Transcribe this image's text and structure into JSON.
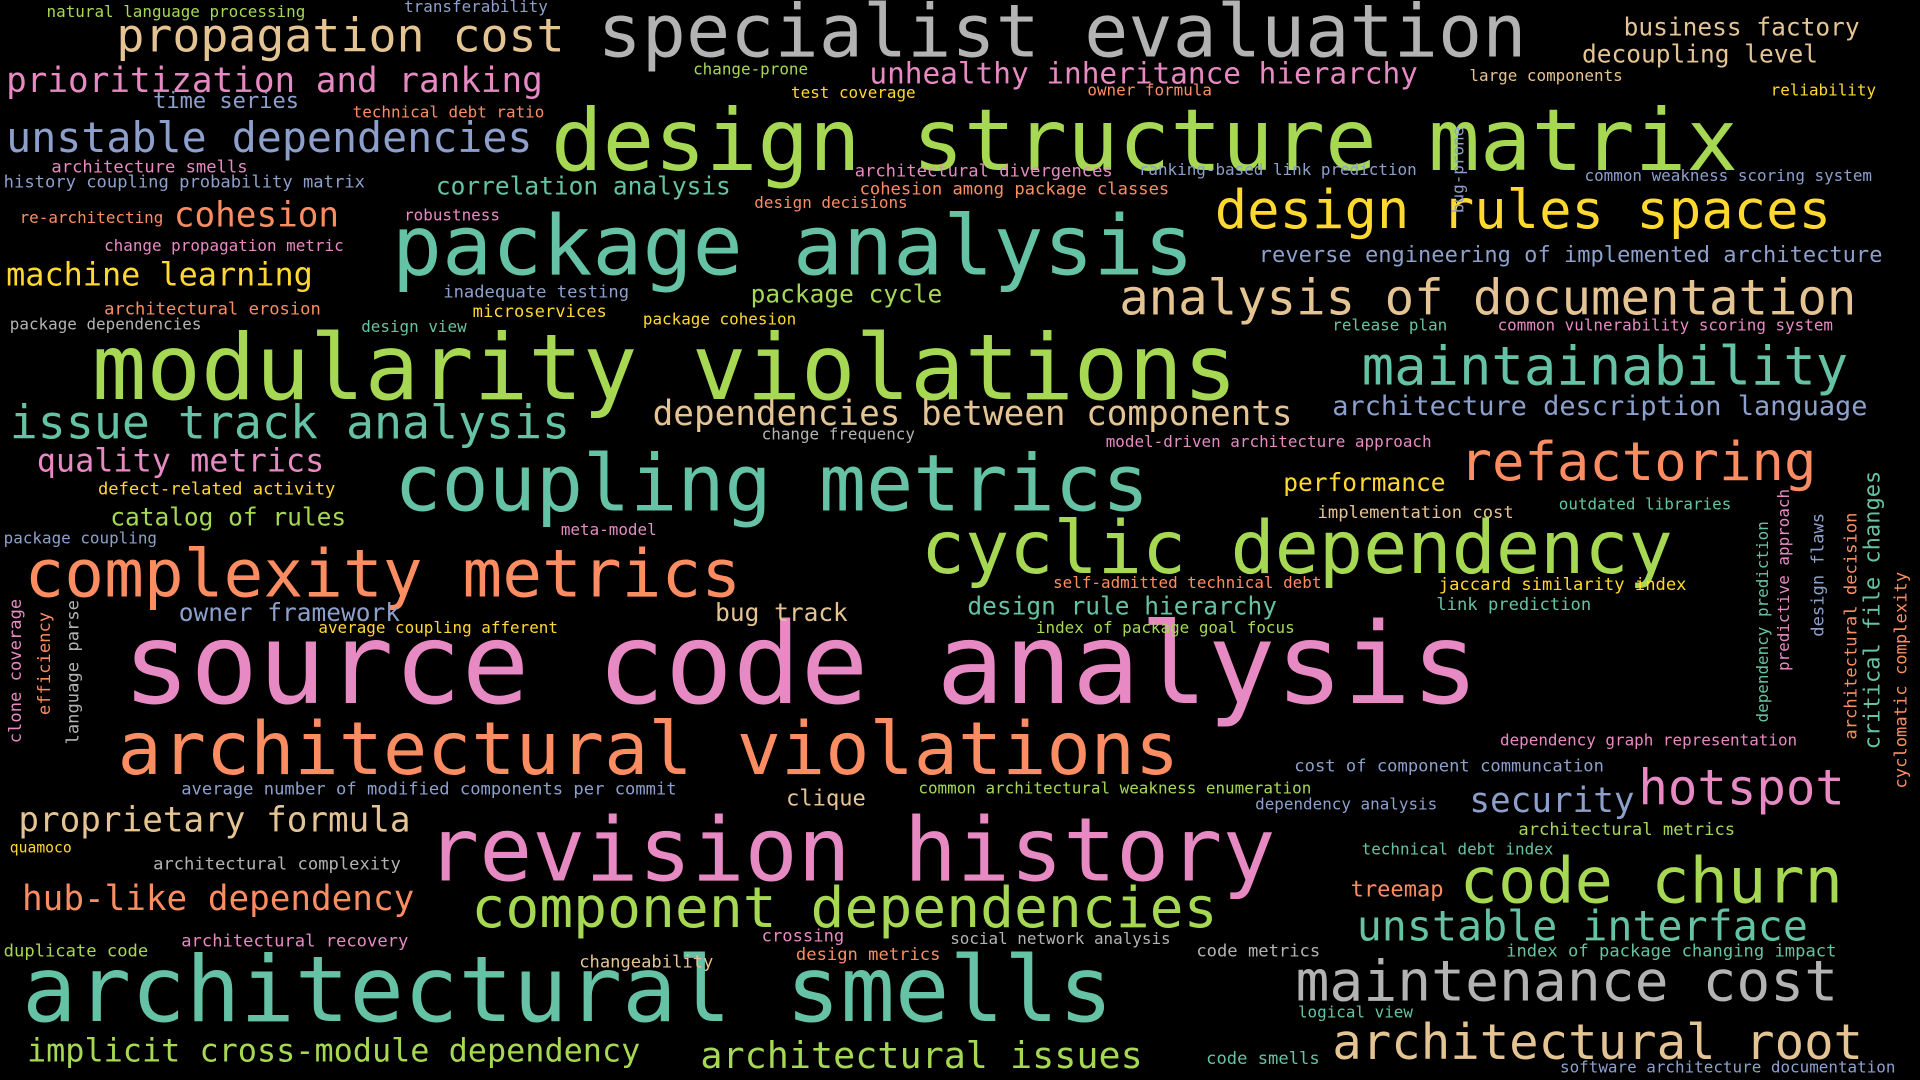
{
  "palette": {
    "background": "#000000",
    "pink": "#e78ac3",
    "green": "#a6d854",
    "teal": "#66c2a5",
    "orange": "#fc8d62",
    "blue": "#8da0cb",
    "yellow": "#ffd92f",
    "tan": "#e5c494",
    "gray": "#b3b3b3"
  },
  "words": {
    "source_code_analysis": "source code analysis",
    "design_structure_matrix": "design structure matrix",
    "modularity_violations": "modularity violations",
    "package_analysis": "package analysis",
    "specialist_evaluation": "specialist evaluation",
    "coupling_metrics": "coupling metrics",
    "cyclic_dependency": "cyclic dependency",
    "architectural_smells": "architectural smells",
    "revision_history": "revision history",
    "architectural_violations": "architectural violations",
    "complexity_metrics": "complexity metrics",
    "design_rules_spaces": "design rules spaces",
    "analysis_of_documentation": "analysis of documentation",
    "maintainability": "maintainability",
    "refactoring": "refactoring",
    "code_churn": "code churn",
    "maintenance_cost": "maintenance cost",
    "component_dependencies": "component dependencies",
    "architectural_root": "architectural root",
    "hotspot": "hotspot",
    "issue_track_analysis": "issue track analysis",
    "propagation_cost": "propagation cost",
    "unstable_dependencies": "unstable dependencies",
    "prioritization_and_ranking": "prioritization and ranking",
    "unstable_interface": "unstable interface",
    "dependencies_between_components": "dependencies between components",
    "implicit_cross_module_dependency": "implicit cross-module dependency",
    "architectural_issues": "architectural issues",
    "proprietary_formula": "proprietary formula",
    "hub_like_dependency": "hub-like dependency",
    "unhealthy_inheritance_hierarchy": "unhealthy inheritance hierarchy",
    "cohesion": "cohesion",
    "machine_learning": "machine learning",
    "quality_metrics": "quality metrics",
    "security": "security",
    "architecture_description_language": "architecture description language",
    "business_factory": "business factory",
    "decoupling_level": "decoupling level",
    "catalog_of_rules": "catalog of rules",
    "performance": "performance",
    "correlation_analysis": "correlation analysis",
    "package_cycle": "package cycle",
    "design_rule_hierarchy": "design rule hierarchy",
    "owner_framework": "owner framework",
    "bug_track": "bug track",
    "reverse_engineering": "reverse engineering of implemented architecture",
    "time_series": "time series",
    "critical_file_changes": "critical file changes",
    "treemap": "treemap",
    "clique": "clique",
    "natural_language_processing": "natural language processing",
    "transferability": "transferability",
    "change_prone": "change-prone",
    "test_coverage": "test coverage",
    "owner_formula": "owner formula",
    "large_components": "large components",
    "reliability": "reliability",
    "technical_debt_ratio": "technical debt ratio",
    "architecture_smells": "architecture smells",
    "history_coupling_probability_matrix": "history coupling probability matrix",
    "re_architecting": "re-architecting",
    "change_propagation_metric": "change propagation metric",
    "robustness": "robustness",
    "architectural_divergences": "architectural divergences",
    "ranking_based_link_prediction": "ranking-based link prediction",
    "cohesion_among_package_classes": "cohesion among package classes",
    "design_decisions": "design decisions",
    "common_weakness_scoring_system": "common weakness scoring system",
    "bug_prone": "bug-prone",
    "architectural_erosion": "architectural erosion",
    "inadequate_testing": "inadequate testing",
    "microservices": "microservices",
    "package_cohesion": "package cohesion",
    "package_dependencies": "package dependencies",
    "design_view": "design view",
    "release_plan": "release plan",
    "common_vulnerability_scoring_system": "common vulnerability scoring system",
    "change_frequency": "change frequency",
    "model_driven_architecture_approach": "model-driven architecture approach",
    "defect_related_activity": "defect-related activity",
    "implementation_cost": "implementation cost",
    "outdated_libraries": "outdated libraries",
    "package_coupling": "package coupling",
    "meta_model": "meta-model",
    "self_admitted_technical_debt": "self-admitted technical debt",
    "jaccard_similarity_index": "jaccard similarity index",
    "link_prediction": "link prediction",
    "average_coupling_afferent": "average coupling afferent",
    "index_of_package_goal_focus": "index of package goal focus",
    "dependency_graph_representation": "dependency graph representation",
    "cost_of_component_communcation": "cost of component communcation",
    "average_number_of_modified_components": "average number of modified components per commit",
    "common_architectural_weakness_enumeration": "common architectural weakness enumeration",
    "dependency_analysis": "dependency analysis",
    "quamoco": "quamoco",
    "architectural_metrics": "architectural metrics",
    "architectural_complexity": "architectural complexity",
    "technical_debt_index": "technical debt index",
    "duplicate_code": "duplicate code",
    "architectural_recovery": "architectural recovery",
    "crossing": "crossing",
    "social_network_analysis": "social network analysis",
    "code_metrics": "code metrics",
    "index_of_package_changing_impact": "index of package changing impact",
    "changeability": "changeability",
    "design_metrics": "design metrics",
    "logical_view": "logical view",
    "code_smells": "code smells",
    "software_architecture_documentation": "software architecture documentation",
    "clone_coverage": "clone coverage",
    "efficiency": "efficiency",
    "language_parse": "language parse",
    "dependency_prediction": "dependency prediction",
    "predictive_approach": "predictive approach",
    "design_flaws": "design flaws",
    "architectural_decision": "architectural decision",
    "cyclomatic_complexity": "cyclomatic complexity"
  }
}
